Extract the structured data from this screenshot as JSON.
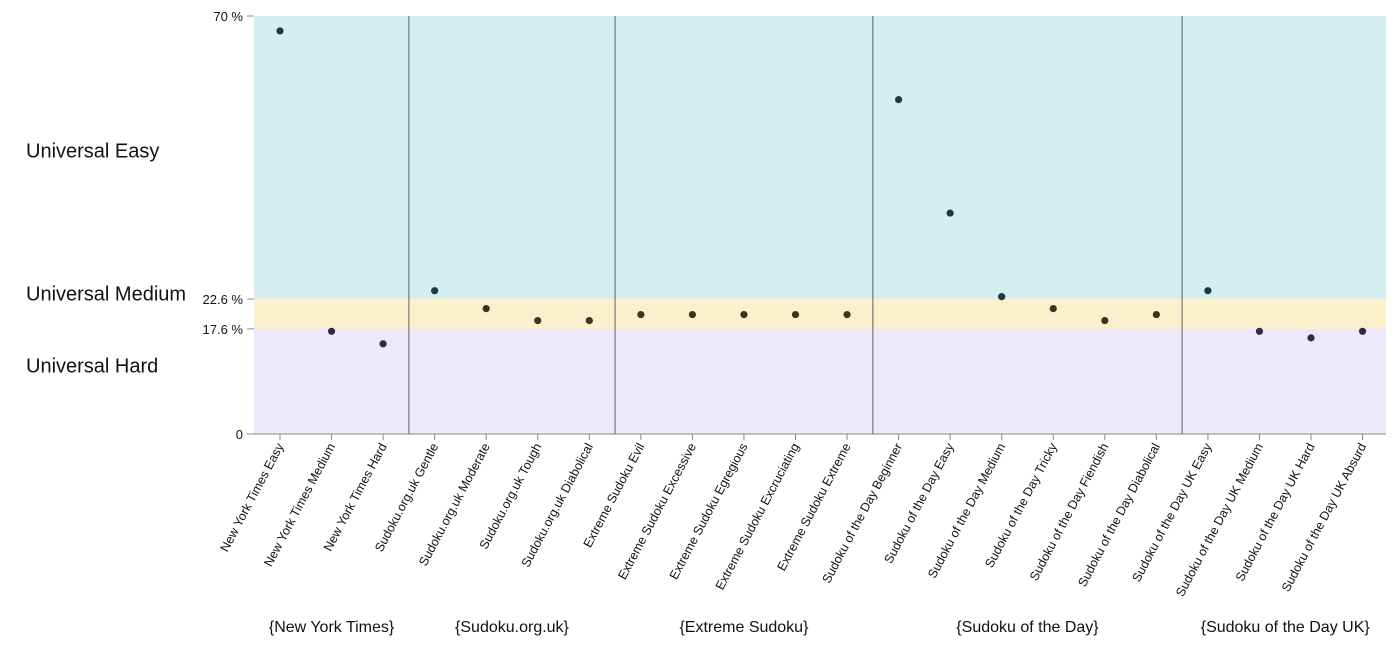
{
  "chart_data": {
    "type": "scatter",
    "title": "",
    "xlabel": "",
    "ylabel": "",
    "y_unit": "%",
    "ylim": [
      0,
      70
    ],
    "y_ticks": [
      {
        "value": 0,
        "label": "0"
      },
      {
        "value": 17.6,
        "label": "17.6 %"
      },
      {
        "value": 22.6,
        "label": "22.6 %"
      },
      {
        "value": 70,
        "label": "70 %"
      }
    ],
    "bands": [
      {
        "name": "Universal Easy",
        "from": 22.6,
        "to": 70,
        "color": "#d5eef0"
      },
      {
        "name": "Universal Medium",
        "from": 17.6,
        "to": 22.6,
        "color": "#fbf0cc"
      },
      {
        "name": "Universal Hard",
        "from": 0,
        "to": 17.6,
        "color": "#ece9fb"
      }
    ],
    "band_label_values": [
      47.5,
      23.5,
      11.5
    ],
    "groups": [
      {
        "name": "{New York Times}",
        "categories": [
          "New York Times Easy",
          "New York Times Medium",
          "New York Times Hard"
        ],
        "values": [
          67.5,
          17.2,
          15.1
        ]
      },
      {
        "name": "{Sudoku.org.uk}",
        "categories": [
          "Sudoku.org.uk Gentle",
          "Sudoku.org.uk Moderate",
          "Sudoku.org.uk Tough",
          "Sudoku.org.uk Diabolical"
        ],
        "values": [
          24.0,
          21.0,
          19.0,
          19.0
        ]
      },
      {
        "name": "{Extreme Sudoku}",
        "categories": [
          "Extreme Sudoku Evil",
          "Extreme Sudoku Excessive",
          "Extreme Sudoku Egregious",
          "Extreme Sudoku Excruciating",
          "Extreme Sudoku Extreme"
        ],
        "values": [
          20.0,
          20.0,
          20.0,
          20.0,
          20.0
        ]
      },
      {
        "name": "{Sudoku of the Day}",
        "categories": [
          "Sudoku of the Day Beginner",
          "Sudoku of the Day Easy",
          "Sudoku of the Day Medium",
          "Sudoku of the Day Tricky",
          "Sudoku of the Day Fiendish",
          "Sudoku of the Day Diabolical"
        ],
        "values": [
          56.0,
          37.0,
          23.0,
          21.0,
          19.0,
          20.0
        ]
      },
      {
        "name": "{Sudoku of the Day UK}",
        "categories": [
          "Sudoku of the Day UK Easy",
          "Sudoku of the Day UK Medium",
          "Sudoku of the Day UK Hard",
          "Sudoku of the Day UK Absurd"
        ],
        "values": [
          24.0,
          17.2,
          16.1,
          17.2
        ]
      }
    ],
    "point_colors": {
      "easy": "#1d3a40",
      "medium": "#3a3520",
      "hard": "#2c2c44"
    },
    "separator_color": "#777777"
  }
}
